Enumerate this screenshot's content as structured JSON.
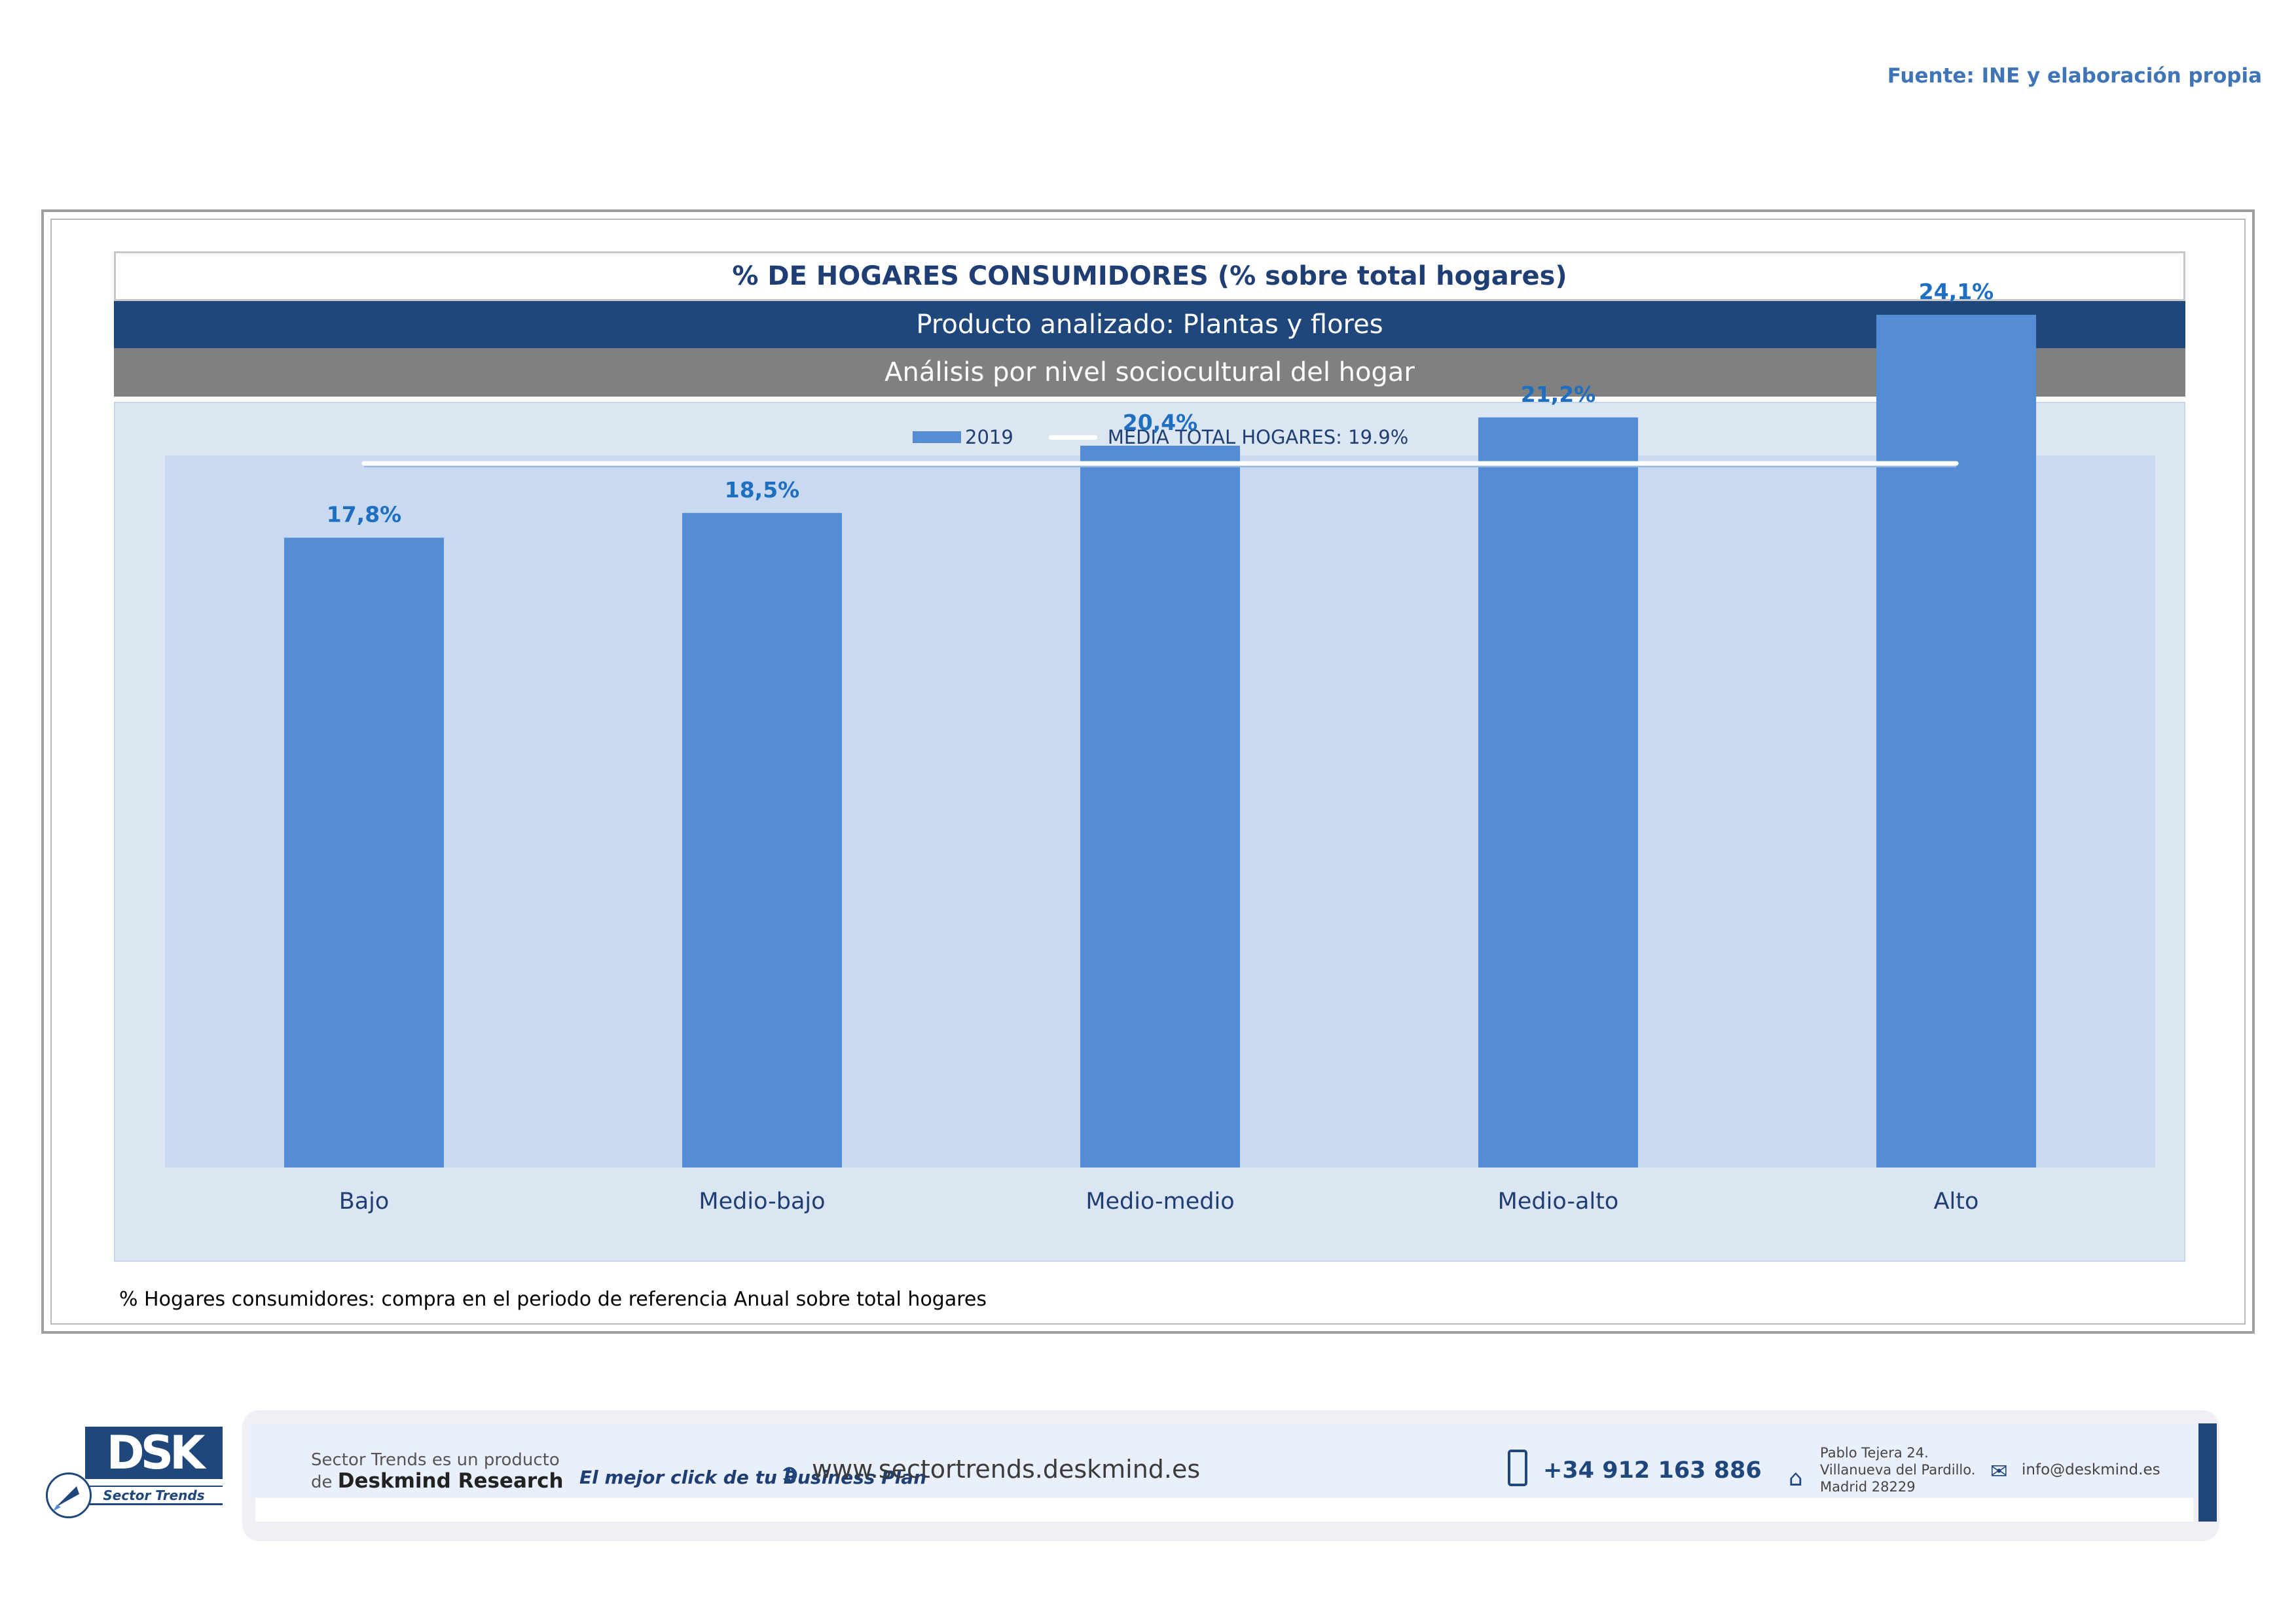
{
  "source": "Fuente: INE y elaboración propia",
  "header": {
    "title": "% DE HOGARES CONSUMIDORES (% sobre total hogares)",
    "product": "Producto analizado: Plantas y flores",
    "analysis": "Análisis por nivel sociocultural del hogar"
  },
  "legend": {
    "series_label": "2019",
    "line_label": "MEDIA TOTAL  HOGARES:  19.9%"
  },
  "note": "% Hogares consumidores: compra en el periodo de referencia Anual sobre total hogares",
  "colors": {
    "bar": "#548dd4",
    "label": "#1f6fc0",
    "average_line": "#ffffff",
    "header_blue": "#1f477c",
    "header_grey": "#808080"
  },
  "chart_data": {
    "type": "bar",
    "categories": [
      "Bajo",
      "Medio-bajo",
      "Medio-medio",
      "Medio-alto",
      "Alto"
    ],
    "series": [
      {
        "name": "2019",
        "values": [
          17.8,
          18.5,
          20.4,
          21.2,
          24.1
        ]
      }
    ],
    "data_labels": [
      "17,8%",
      "18,5%",
      "20,4%",
      "21,2%",
      "24,1%"
    ],
    "reference_line": {
      "name": "MEDIA TOTAL  HOGARES:  19.9%",
      "value": 19.9
    },
    "title": "% DE HOGARES CONSUMIDORES (% sobre total hogares)",
    "xlabel": "",
    "ylabel": "",
    "ylim": [
      0,
      30
    ],
    "grid": false,
    "legend_position": "top"
  },
  "footer": {
    "logo_text": "DSK",
    "logo_subtitle": "Sector Trends",
    "product_line1": "Sector Trends es un producto",
    "product_line2_prefix": "de",
    "product_line2_brand": "Deskmind Research",
    "slogan": "El mejor click de tu Business Plan",
    "website": "www.sectortrends.deskmind.es",
    "phone": "+34 912 163 886",
    "address_line1": "Pablo Tejera 24.",
    "address_line2": "Villanueva del Pardillo.",
    "address_line3": "Madrid 28229",
    "email": "info@deskmind.es",
    "icons": [
      "arrow-right-icon",
      "phone-icon",
      "home-icon",
      "mail-icon"
    ]
  }
}
